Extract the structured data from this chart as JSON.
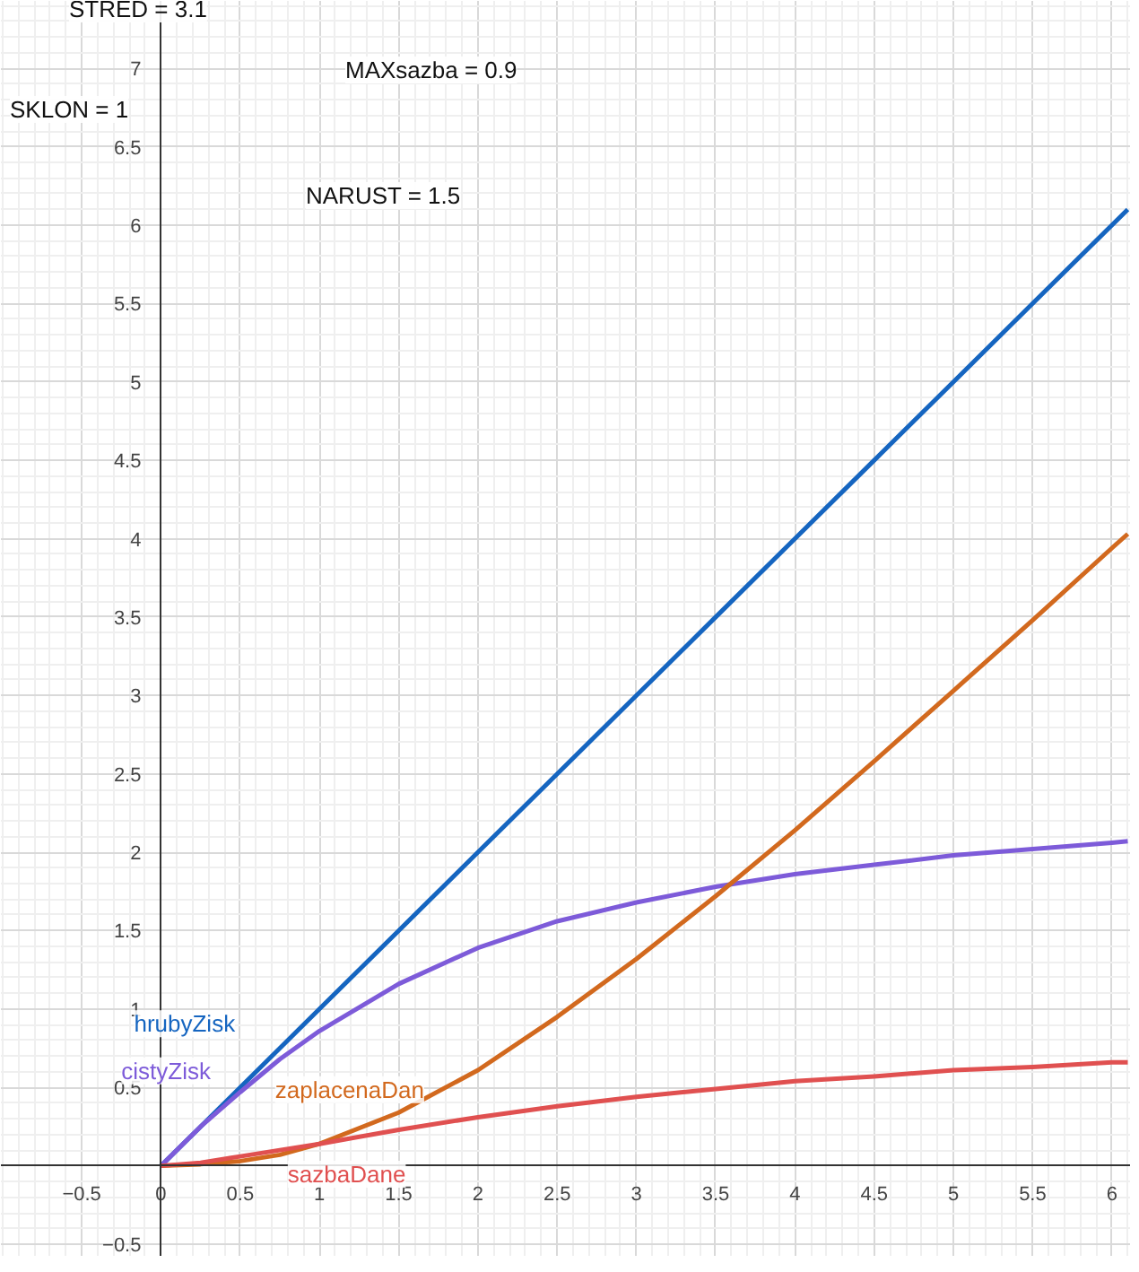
{
  "chart_data": {
    "type": "line",
    "x": [
      0,
      0.25,
      0.5,
      0.75,
      1,
      1.5,
      2,
      2.5,
      3,
      3.5,
      4,
      4.5,
      5,
      5.5,
      6,
      6.1
    ],
    "series": [
      {
        "name": "hrubyZisk",
        "color": "#1565c0",
        "values": [
          0,
          0.25,
          0.5,
          0.75,
          1,
          1.5,
          2,
          2.5,
          3,
          3.5,
          4,
          4.5,
          5,
          5.5,
          6,
          6.1
        ]
      },
      {
        "name": "cistyZisk",
        "color": "#7d5bd9",
        "values": [
          0,
          0.25,
          0.47,
          0.68,
          0.86,
          1.16,
          1.39,
          1.56,
          1.68,
          1.78,
          1.86,
          1.92,
          1.98,
          2.02,
          2.06,
          2.07
        ]
      },
      {
        "name": "zaplacenaDan",
        "color": "#d2691e",
        "values": [
          0,
          0.01,
          0.03,
          0.07,
          0.14,
          0.34,
          0.61,
          0.95,
          1.32,
          1.72,
          2.14,
          2.58,
          3.03,
          3.48,
          3.94,
          4.03
        ]
      },
      {
        "name": "sazbaDane",
        "color": "#e05050",
        "values": [
          0,
          0.02,
          0.06,
          0.1,
          0.14,
          0.23,
          0.31,
          0.38,
          0.44,
          0.49,
          0.54,
          0.57,
          0.61,
          0.63,
          0.66,
          0.66
        ]
      }
    ],
    "xlim": [
      -1.01,
      6.12
    ],
    "ylim": [
      -0.58,
      7.43
    ],
    "xticks": [
      -0.5,
      0,
      0.5,
      1,
      1.5,
      2,
      2.5,
      3,
      3.5,
      4,
      4.5,
      5,
      5.5,
      6
    ],
    "yticks": [
      -0.5,
      0.5,
      1,
      1.5,
      2,
      2.5,
      3,
      3.5,
      4,
      4.5,
      5,
      5.5,
      6,
      6.5,
      7
    ],
    "grid": true,
    "marker": "none",
    "line_style": "solid",
    "annotations": [
      "STRED = 3.1",
      "MAXsazba = 0.9",
      "SKLON = 1",
      "NARUST = 1.5"
    ]
  }
}
